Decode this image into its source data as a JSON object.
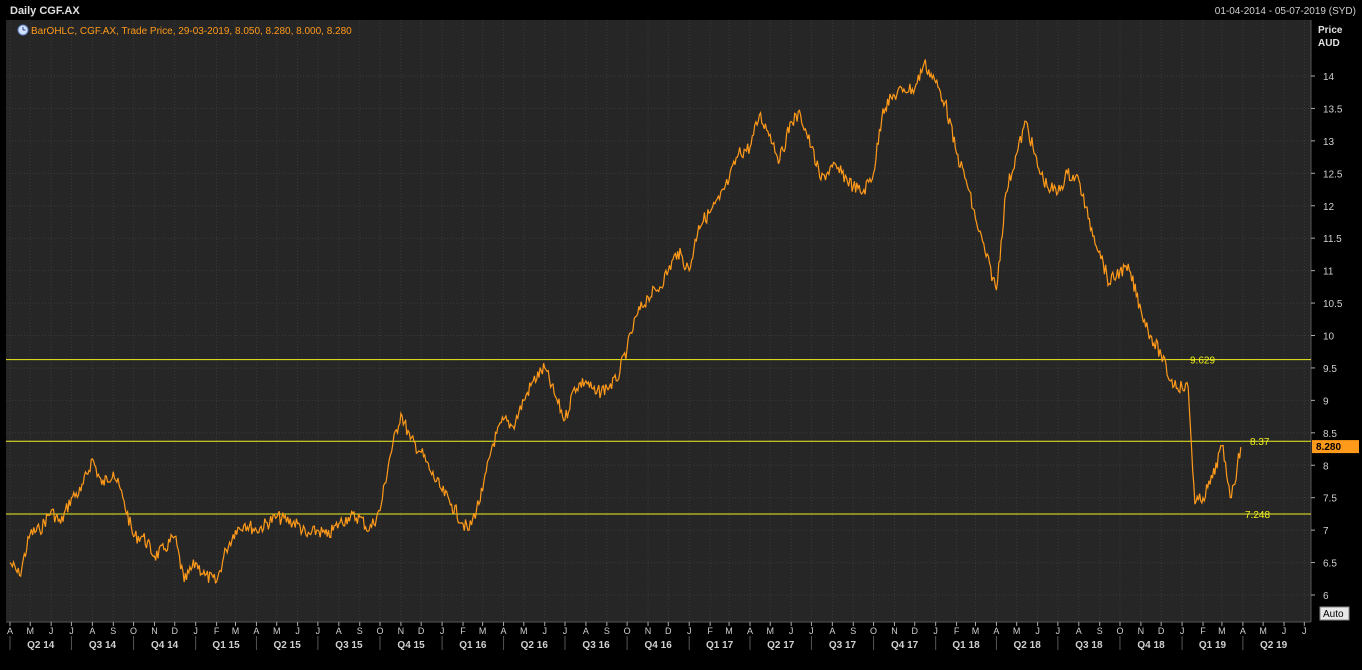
{
  "header": {
    "title": "Daily CGF.AX",
    "date_range": "01-04-2014 - 05-07-2019 (SYD)"
  },
  "legend": {
    "icon": "clock-icon",
    "text": "BarOHLC, CGF.AX, Trade Price, 29-03-2019, 8.050, 8.280, 8.000, 8.280"
  },
  "y_axis": {
    "title_line1": "Price",
    "title_line2": "AUD",
    "ticks": [
      "14",
      "13.5",
      "13",
      "12.5",
      "12",
      "11.5",
      "11",
      "10.5",
      "10",
      "9.5",
      "9",
      "8.5",
      "8",
      "7.5",
      "7",
      "6.5",
      "6"
    ]
  },
  "last_price_label": "8.280",
  "auto_button_label": "Auto",
  "colors": {
    "background": "#000000",
    "plot_background": "#262626",
    "grid": "#3a3a3a",
    "series": "#ff9a1a",
    "hline": "#f0f020",
    "last_price_box": "#ff9a1a"
  },
  "chart_data": {
    "type": "line",
    "title": "Daily CGF.AX",
    "ylabel": "Price AUD",
    "ylim": [
      5.75,
      14.5
    ],
    "series": [
      {
        "name": "CGF.AX",
        "x": [
          "2014-04-01",
          "2014-04-15",
          "2014-05-01",
          "2014-05-15",
          "2014-06-01",
          "2014-06-15",
          "2014-07-01",
          "2014-07-15",
          "2014-08-01",
          "2014-08-15",
          "2014-09-01",
          "2014-09-15",
          "2014-10-01",
          "2014-10-15",
          "2014-11-01",
          "2014-11-15",
          "2014-12-01",
          "2014-12-15",
          "2015-01-01",
          "2015-01-15",
          "2015-02-01",
          "2015-02-15",
          "2015-03-01",
          "2015-03-15",
          "2015-04-01",
          "2015-05-01",
          "2015-06-01",
          "2015-06-15",
          "2015-07-01",
          "2015-07-15",
          "2015-08-01",
          "2015-08-15",
          "2015-09-01",
          "2015-09-15",
          "2015-10-01",
          "2015-10-15",
          "2015-11-01",
          "2015-11-15",
          "2015-12-01",
          "2015-12-15",
          "2016-01-01",
          "2016-01-15",
          "2016-02-01",
          "2016-02-10",
          "2016-03-01",
          "2016-03-15",
          "2016-04-01",
          "2016-04-15",
          "2016-05-01",
          "2016-05-15",
          "2016-06-01",
          "2016-06-15",
          "2016-07-01",
          "2016-07-15",
          "2016-08-01",
          "2016-08-15",
          "2016-09-01",
          "2016-09-15",
          "2016-10-01",
          "2016-10-15",
          "2016-11-01",
          "2016-11-15",
          "2016-12-01",
          "2016-12-15",
          "2017-01-01",
          "2017-01-15",
          "2017-02-01",
          "2017-02-15",
          "2017-03-01",
          "2017-03-15",
          "2017-04-01",
          "2017-04-15",
          "2017-05-01",
          "2017-05-15",
          "2017-06-01",
          "2017-06-15",
          "2017-07-01",
          "2017-07-15",
          "2017-08-01",
          "2017-08-15",
          "2017-09-01",
          "2017-09-15",
          "2017-10-01",
          "2017-10-15",
          "2017-11-01",
          "2017-11-15",
          "2017-12-01",
          "2017-12-15",
          "2018-01-01",
          "2018-01-15",
          "2018-02-01",
          "2018-02-15",
          "2018-03-01",
          "2018-03-15",
          "2018-04-01",
          "2018-04-15",
          "2018-05-01",
          "2018-05-15",
          "2018-06-01",
          "2018-06-15",
          "2018-07-01",
          "2018-07-15",
          "2018-08-01",
          "2018-08-15",
          "2018-09-01",
          "2018-09-15",
          "2018-10-01",
          "2018-10-15",
          "2018-11-01",
          "2018-11-15",
          "2018-12-01",
          "2018-12-15",
          "2019-01-01",
          "2019-01-10",
          "2019-01-20",
          "2019-02-01",
          "2019-02-15",
          "2019-03-01",
          "2019-03-15",
          "2019-03-29"
        ],
        "values": [
          6.5,
          6.3,
          6.95,
          7.0,
          7.3,
          7.1,
          7.5,
          7.6,
          8.1,
          7.7,
          7.9,
          7.5,
          6.9,
          6.9,
          6.6,
          6.7,
          6.9,
          6.2,
          6.5,
          6.3,
          6.2,
          6.7,
          7.0,
          7.1,
          7.0,
          7.2,
          7.1,
          6.9,
          7.0,
          6.9,
          7.1,
          7.2,
          7.2,
          7.0,
          7.3,
          8.1,
          8.8,
          8.4,
          8.2,
          7.9,
          7.6,
          7.4,
          7.1,
          7.0,
          7.6,
          8.3,
          8.7,
          8.6,
          9.0,
          9.3,
          9.5,
          9.1,
          8.7,
          9.2,
          9.3,
          9.1,
          9.2,
          9.3,
          9.8,
          10.3,
          10.6,
          10.7,
          11.0,
          11.3,
          11.0,
          11.7,
          11.9,
          12.1,
          12.4,
          12.8,
          12.9,
          13.4,
          13.1,
          12.7,
          13.3,
          13.4,
          12.9,
          12.4,
          12.6,
          12.5,
          12.3,
          12.2,
          12.5,
          13.5,
          13.7,
          13.8,
          13.8,
          14.2,
          13.9,
          13.6,
          12.8,
          12.4,
          11.8,
          11.3,
          10.7,
          12.2,
          12.8,
          13.3,
          12.6,
          12.3,
          12.2,
          12.5,
          12.4,
          11.8,
          11.3,
          10.8,
          11.0,
          11.0,
          10.4,
          10.0,
          9.7,
          9.3,
          9.2,
          9.2,
          7.4,
          7.5,
          7.8,
          8.3,
          7.5,
          8.28
        ]
      }
    ],
    "horizontal_lines": [
      {
        "value": 9.629,
        "label": "9.629"
      },
      {
        "value": 8.37,
        "label": "8.37"
      },
      {
        "value": 7.248,
        "label": "7.248"
      }
    ],
    "x_months": [
      "A",
      "M",
      "J",
      "J",
      "A",
      "S",
      "O",
      "N",
      "D",
      "J",
      "F",
      "M",
      "A",
      "M",
      "J",
      "J",
      "A",
      "S",
      "O",
      "N",
      "D",
      "J",
      "F",
      "M",
      "A",
      "M",
      "J",
      "J",
      "A",
      "S",
      "O",
      "N",
      "D",
      "J",
      "F",
      "M",
      "A",
      "M",
      "J",
      "J",
      "A",
      "S",
      "O",
      "N",
      "D",
      "J",
      "F",
      "M",
      "A",
      "M",
      "J",
      "J",
      "A",
      "S",
      "O",
      "N",
      "D",
      "J",
      "F",
      "M",
      "A",
      "M",
      "J",
      "J"
    ],
    "x_quarters": [
      "Q2 14",
      "Q3 14",
      "Q4 14",
      "Q1 15",
      "Q2 15",
      "Q3 15",
      "Q4 15",
      "Q1 16",
      "Q2 16",
      "Q3 16",
      "Q4 16",
      "Q1 17",
      "Q2 17",
      "Q3 17",
      "Q4 17",
      "Q1 18",
      "Q2 18",
      "Q3 18",
      "Q4 18",
      "Q1 19",
      "Q2 19"
    ],
    "grid": true
  }
}
